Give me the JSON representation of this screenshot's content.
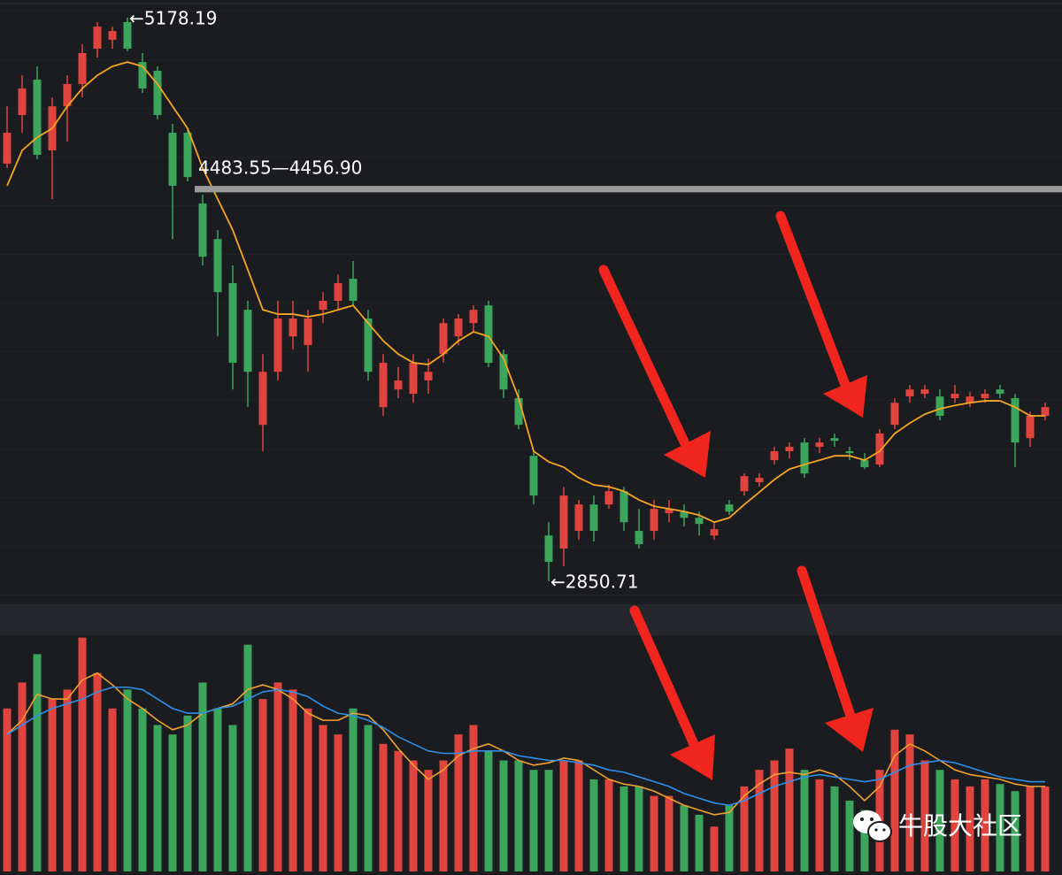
{
  "chart_data": {
    "type": "candlestick",
    "ylim": [
      2767,
      5251
    ],
    "up_color": "#e0443f",
    "down_color": "#3aa55b",
    "open": [
      4575,
      4776,
      4922,
      4630,
      4812,
      4904,
      5050,
      5087,
      5160,
      4995,
      4959,
      4703,
      4703,
      4411,
      4264,
      4082,
      3972,
      3497,
      3716,
      3862,
      3826,
      3972,
      4009,
      4100,
      3936,
      3570,
      3643,
      3625,
      3680,
      3789,
      3862,
      3917,
      3990,
      3789,
      3607,
      3369,
      3040,
      2986,
      3059,
      3168,
      3168,
      3223,
      3059,
      3059,
      3132,
      3139,
      3113,
      3040,
      3168,
      3223,
      3260,
      3351,
      3388,
      3424,
      3406,
      3442,
      3388,
      3351,
      3333,
      3497,
      3614,
      3625,
      3614,
      3607,
      3588,
      3607,
      3643,
      3607,
      3442,
      3534
    ],
    "high": [
      4812,
      4940,
      4977,
      4849,
      4940,
      5068,
      5160,
      5141,
      5178.19,
      5032,
      4977,
      4739,
      4721,
      4447,
      4301,
      4155,
      4009,
      3789,
      4009,
      4009,
      3972,
      4045,
      4118,
      4173,
      3972,
      3789,
      3735,
      3789,
      3771,
      3936,
      3954,
      3990,
      4009,
      3808,
      3643,
      3388,
      3095,
      3241,
      3187,
      3205,
      3249,
      3241,
      3150,
      3187,
      3187,
      3168,
      3139,
      3095,
      3187,
      3296,
      3296,
      3406,
      3424,
      3442,
      3442,
      3461,
      3406,
      3380,
      3479,
      3607,
      3662,
      3662,
      3643,
      3662,
      3632,
      3643,
      3662,
      3625,
      3552,
      3588
    ],
    "low": [
      4557,
      4703,
      4593,
      4429,
      4666,
      4849,
      5013,
      5050,
      5039,
      4867,
      4758,
      4264,
      4502,
      4155,
      3862,
      3643,
      3570,
      3388,
      3680,
      3808,
      3716,
      3917,
      3972,
      3990,
      3680,
      3534,
      3607,
      3588,
      3625,
      3753,
      3826,
      3881,
      3735,
      3607,
      3479,
      3168,
      2850.71,
      2913,
      3022,
      3015,
      3150,
      3059,
      2986,
      3022,
      3095,
      3077,
      3040,
      3022,
      3124,
      3205,
      3241,
      3333,
      3358,
      3278,
      3380,
      3406,
      3351,
      3314,
      3322,
      3479,
      3588,
      3607,
      3515,
      3588,
      3570,
      3588,
      3607,
      3322,
      3406,
      3515
    ],
    "close": [
      4703,
      4886,
      4612,
      4812,
      4904,
      5032,
      5141,
      5123,
      5050,
      4886,
      4776,
      4484,
      4520,
      4191,
      4045,
      3753,
      3716,
      3716,
      3936,
      3936,
      3936,
      4009,
      4082,
      4009,
      3716,
      3753,
      3680,
      3753,
      3716,
      3917,
      3936,
      3972,
      3753,
      3643,
      3497,
      3205,
      2931,
      3205,
      3168,
      3059,
      3223,
      3095,
      3004,
      3150,
      3150,
      3113,
      3088,
      3066,
      3139,
      3285,
      3278,
      3388,
      3406,
      3296,
      3424,
      3431,
      3380,
      3322,
      3461,
      3588,
      3643,
      3643,
      3534,
      3625,
      3614,
      3625,
      3625,
      3424,
      3534,
      3570
    ],
    "ma": {
      "color": "#f5a623",
      "values": [
        4484,
        4630,
        4684,
        4721,
        4812,
        4886,
        4940,
        4977,
        4995,
        4977,
        4904,
        4812,
        4721,
        4557,
        4429,
        4301,
        4137,
        3972,
        3954,
        3954,
        3943,
        3954,
        3972,
        3990,
        3917,
        3844,
        3789,
        3753,
        3746,
        3789,
        3844,
        3881,
        3862,
        3771,
        3607,
        3388,
        3344,
        3322,
        3278,
        3249,
        3241,
        3223,
        3187,
        3161,
        3150,
        3139,
        3124,
        3095,
        3113,
        3168,
        3219,
        3271,
        3314,
        3333,
        3351,
        3369,
        3369,
        3351,
        3388,
        3461,
        3504,
        3541,
        3563,
        3577,
        3588,
        3596,
        3596,
        3570,
        3534,
        3534
      ]
    },
    "annotations": [
      {
        "label": "←5178.19",
        "value": 5178.19
      },
      {
        "label": "4483.55—4456.90",
        "values": [
          4483.55,
          4456.9
        ],
        "color": "#9a9a9a"
      },
      {
        "label": "←2850.71",
        "value": 2850.71
      }
    ],
    "volume": {
      "ylim": [
        0,
        100
      ],
      "values": [
        69,
        80,
        92,
        73,
        77,
        99,
        84,
        69,
        77,
        69,
        62,
        58,
        66,
        80,
        69,
        62,
        96,
        73,
        80,
        77,
        69,
        62,
        58,
        69,
        62,
        54,
        51,
        47,
        43,
        47,
        58,
        62,
        51,
        47,
        47,
        43,
        43,
        47,
        47,
        39,
        39,
        36,
        36,
        32,
        32,
        28,
        24,
        19,
        28,
        36,
        43,
        47,
        52,
        43,
        39,
        36,
        30,
        26,
        43,
        60,
        58,
        47,
        43,
        39,
        36,
        39,
        37,
        34,
        36,
        36
      ],
      "series": [
        {
          "color": "#f0a030",
          "values": [
            58,
            64,
            75,
            73,
            73,
            81,
            84,
            79,
            73,
            69,
            64,
            60,
            62,
            67,
            69,
            71,
            77,
            79,
            77,
            73,
            67,
            64,
            64,
            67,
            66,
            60,
            52,
            45,
            39,
            43,
            49,
            52,
            54,
            51,
            47,
            45,
            46,
            48,
            47,
            43,
            39,
            37,
            36,
            34,
            31,
            28,
            26,
            24,
            25,
            32,
            37,
            41,
            42,
            41,
            43,
            41,
            36,
            30,
            36,
            49,
            54,
            51,
            47,
            43,
            41,
            40,
            39,
            37,
            36,
            36
          ]
        },
        {
          "color": "#2f8fe8",
          "values": [
            58,
            62,
            66,
            69,
            71,
            73,
            76,
            78,
            78,
            77,
            73,
            69,
            67,
            67,
            69,
            70,
            73,
            76,
            77,
            76,
            74,
            70,
            67,
            66,
            64,
            61,
            57,
            54,
            51,
            50,
            50,
            51,
            51,
            51,
            49,
            48,
            47,
            47,
            46,
            45,
            43,
            42,
            40,
            38,
            36,
            33,
            31,
            29,
            28,
            30,
            33,
            36,
            38,
            40,
            41,
            40,
            39,
            38,
            39,
            42,
            45,
            46,
            47,
            46,
            44,
            42,
            40,
            39,
            38,
            38
          ]
        }
      ]
    }
  },
  "watermark": "牛股大社区"
}
